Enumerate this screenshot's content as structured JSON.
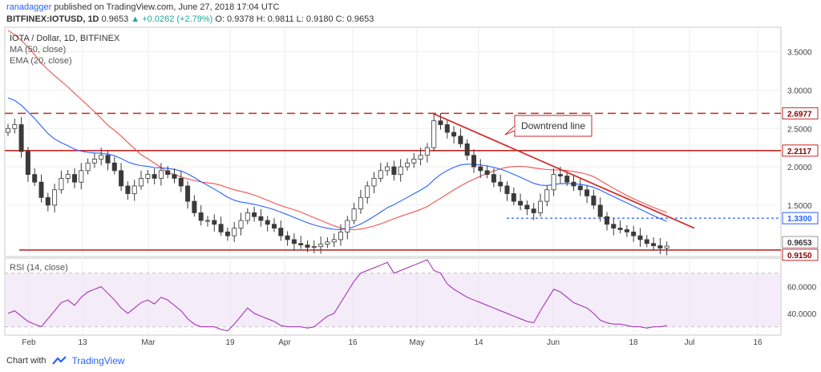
{
  "header": {
    "user": "ranadagger",
    "published": "published on TradingView.com, June 27, 2018 17:04 UTC",
    "symbol": "BITFINEX:IOTUSD, 1D",
    "last": "0.9653",
    "change": "▲ +0.0262 (+2.79%)",
    "ohlc": "O: 0.9378 H: 0.9811 L: 0.9180 C: 0.9653"
  },
  "legend": {
    "title": "IOTA / Dollar, 1D, BITFINEX",
    "ma": "MA (50, close)",
    "ema": "EMA (20, close)",
    "rsi": "RSI (14, close)"
  },
  "annotation": "Downtrend line",
  "footer": {
    "chart_by": "Chart with",
    "brand": "TradingView"
  },
  "colors": {
    "up": "#26a69a",
    "down": "#ef5350",
    "candle": "#3a3a3a",
    "ema": "#2962ff",
    "ma": "#ef5350",
    "level": "#c62828",
    "support": "#2962ff",
    "rsi": "#9c27b0",
    "rsi_band": "#ecdff5"
  },
  "chart_data": [
    {
      "type": "candlestick",
      "title": "IOTA / Dollar, 1D, BITFINEX",
      "y_axis": {
        "ticks": [
          "1.5000",
          "2.0000",
          "2.5000",
          "3.0000",
          "3.5000"
        ],
        "ylim": [
          0.85,
          3.8
        ]
      },
      "x_axis": {
        "ticks": [
          "Feb",
          "13",
          "Mar",
          "19",
          "Apr",
          "16",
          "May",
          "14",
          "Jun",
          "18",
          "Jul",
          "16"
        ]
      },
      "price_labels": [
        "2.6977",
        "2.2117",
        "1.3300",
        "0.9653",
        "0.9150"
      ],
      "horizontal_levels": [
        {
          "value": 2.6977,
          "style": "dashed"
        },
        {
          "value": 2.2117,
          "style": "solid"
        },
        {
          "value": 1.33,
          "style": "dotted"
        },
        {
          "value": 0.915,
          "style": "solid"
        }
      ],
      "close_series": [
        2.5,
        2.55,
        2.2,
        1.9,
        1.8,
        1.6,
        1.5,
        1.7,
        1.85,
        1.9,
        1.8,
        1.95,
        2.05,
        2.1,
        2.15,
        2.05,
        1.95,
        1.75,
        1.65,
        1.75,
        1.85,
        1.9,
        1.85,
        1.95,
        1.9,
        1.85,
        1.75,
        1.55,
        1.4,
        1.3,
        1.3,
        1.25,
        1.15,
        1.1,
        1.2,
        1.3,
        1.4,
        1.35,
        1.3,
        1.25,
        1.2,
        1.1,
        1.05,
        1.0,
        0.98,
        0.95,
        0.96,
        0.99,
        1.02,
        1.05,
        1.15,
        1.3,
        1.45,
        1.6,
        1.75,
        1.85,
        1.95,
        2.0,
        1.9,
        2.0,
        2.05,
        2.1,
        2.15,
        2.25,
        2.6,
        2.55,
        2.45,
        2.4,
        2.3,
        2.15,
        2.0,
        1.95,
        1.9,
        1.8,
        1.75,
        1.65,
        1.55,
        1.5,
        1.45,
        1.4,
        1.55,
        1.7,
        1.9,
        1.88,
        1.8,
        1.75,
        1.7,
        1.62,
        1.5,
        1.35,
        1.25,
        1.2,
        1.18,
        1.15,
        1.1,
        1.05,
        1.0,
        0.97,
        0.94,
        0.9653
      ]
    },
    {
      "type": "line",
      "title": "RSI (14, close)",
      "y_axis": {
        "ticks": [
          "40.0000",
          "60.0000"
        ],
        "ylim": [
          25,
          80
        ]
      },
      "bands": [
        30,
        70
      ],
      "values": [
        40,
        42,
        38,
        34,
        32,
        30,
        36,
        42,
        48,
        50,
        46,
        52,
        56,
        58,
        60,
        55,
        50,
        44,
        40,
        44,
        48,
        50,
        47,
        52,
        50,
        46,
        42,
        36,
        32,
        30,
        30,
        30,
        28,
        27,
        32,
        38,
        44,
        40,
        38,
        36,
        34,
        31,
        30,
        30,
        30,
        29,
        30,
        34,
        38,
        40,
        48,
        56,
        64,
        70,
        72,
        74,
        76,
        78,
        70,
        72,
        74,
        76,
        78,
        80,
        72,
        70,
        62,
        58,
        55,
        52,
        50,
        48,
        46,
        44,
        42,
        40,
        38,
        36,
        34,
        33,
        42,
        50,
        58,
        56,
        52,
        48,
        46,
        44,
        40,
        35,
        33,
        32,
        32,
        31,
        30,
        30,
        29,
        30,
        30,
        31
      ]
    }
  ]
}
